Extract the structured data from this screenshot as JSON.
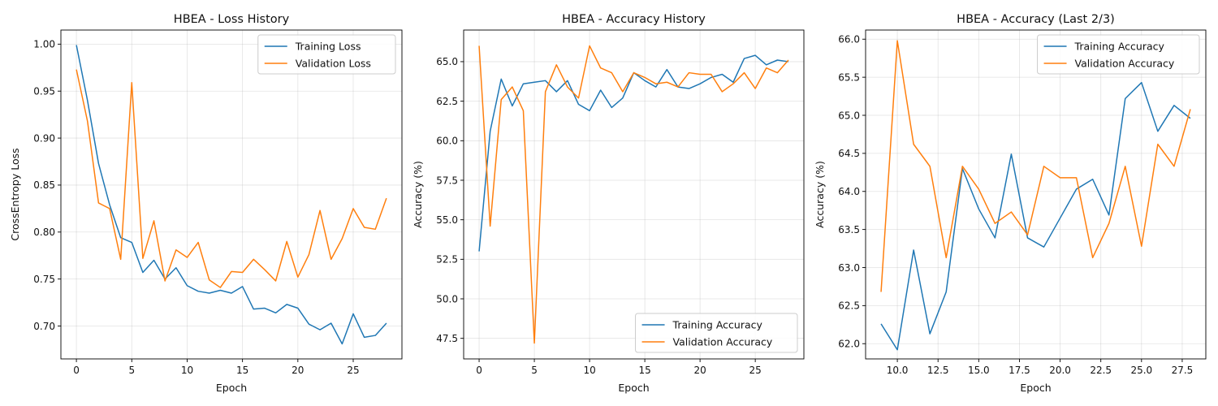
{
  "colors": {
    "training": "#1f77b4",
    "validation": "#ff7f0e"
  },
  "chart_data": [
    {
      "type": "line",
      "title": "HBEA - Loss History",
      "xlabel": "Epoch",
      "ylabel": "CrossEntropy Loss",
      "xlim": [
        -1.4,
        29.4
      ],
      "ylim": [
        0.665,
        1.015
      ],
      "xticks": [
        0,
        5,
        10,
        15,
        20,
        25
      ],
      "xtick_labels": [
        "0",
        "5",
        "10",
        "15",
        "20",
        "25"
      ],
      "yticks": [
        0.7,
        0.75,
        0.8,
        0.85,
        0.9,
        0.95,
        1.0
      ],
      "ytick_labels": [
        "0.70",
        "0.75",
        "0.80",
        "0.85",
        "0.90",
        "0.95",
        "1.00"
      ],
      "grid": true,
      "legend": "top-right",
      "x": [
        0,
        1,
        2,
        3,
        4,
        5,
        6,
        7,
        8,
        9,
        10,
        11,
        12,
        13,
        14,
        15,
        16,
        17,
        18,
        19,
        20,
        21,
        22,
        23,
        24,
        25,
        26,
        27,
        28
      ],
      "series": [
        {
          "name": "Training Loss",
          "color": "#1f77b4",
          "values": [
            0.999,
            0.94,
            0.873,
            0.829,
            0.794,
            0.789,
            0.757,
            0.77,
            0.75,
            0.762,
            0.743,
            0.737,
            0.735,
            0.738,
            0.735,
            0.742,
            0.718,
            0.719,
            0.714,
            0.723,
            0.719,
            0.702,
            0.696,
            0.703,
            0.681,
            0.713,
            0.688,
            0.69,
            0.703
          ]
        },
        {
          "name": "Validation Loss",
          "color": "#ff7f0e",
          "values": [
            0.973,
            0.918,
            0.831,
            0.825,
            0.771,
            0.959,
            0.772,
            0.812,
            0.748,
            0.781,
            0.773,
            0.789,
            0.749,
            0.741,
            0.758,
            0.757,
            0.771,
            0.76,
            0.748,
            0.79,
            0.752,
            0.776,
            0.823,
            0.771,
            0.793,
            0.825,
            0.805,
            0.803,
            0.836
          ]
        }
      ]
    },
    {
      "type": "line",
      "title": "HBEA - Accuracy History",
      "xlabel": "Epoch",
      "ylabel": "Accuracy (%)",
      "xlim": [
        -1.4,
        29.4
      ],
      "ylim": [
        46.2,
        67.0
      ],
      "xticks": [
        0,
        5,
        10,
        15,
        20,
        25
      ],
      "xtick_labels": [
        "0",
        "5",
        "10",
        "15",
        "20",
        "25"
      ],
      "yticks": [
        47.5,
        50.0,
        52.5,
        55.0,
        57.5,
        60.0,
        62.5,
        65.0
      ],
      "ytick_labels": [
        "47.5",
        "50.0",
        "52.5",
        "55.0",
        "57.5",
        "60.0",
        "62.5",
        "65.0"
      ],
      "grid": true,
      "legend": "bottom-right",
      "x": [
        0,
        1,
        2,
        3,
        4,
        5,
        6,
        7,
        8,
        9,
        10,
        11,
        12,
        13,
        14,
        15,
        16,
        17,
        18,
        19,
        20,
        21,
        22,
        23,
        24,
        25,
        26,
        27,
        28
      ],
      "series": [
        {
          "name": "Training Accuracy",
          "color": "#1f77b4",
          "values": [
            53.0,
            60.6,
            63.9,
            62.2,
            63.6,
            63.7,
            63.8,
            63.1,
            63.8,
            62.3,
            61.9,
            63.2,
            62.1,
            62.7,
            64.3,
            63.8,
            63.4,
            64.5,
            63.4,
            63.3,
            63.6,
            64.0,
            64.2,
            63.7,
            65.2,
            65.4,
            64.8,
            65.1,
            65.0
          ]
        },
        {
          "name": "Validation Accuracy",
          "color": "#ff7f0e",
          "values": [
            66.0,
            54.6,
            62.6,
            63.4,
            61.9,
            47.2,
            63.1,
            64.8,
            63.4,
            62.7,
            66.0,
            64.6,
            64.3,
            63.1,
            64.3,
            64.0,
            63.6,
            63.7,
            63.4,
            64.3,
            64.2,
            64.2,
            63.1,
            63.6,
            64.3,
            63.3,
            64.6,
            64.3,
            65.1
          ]
        }
      ]
    },
    {
      "type": "line",
      "title": "HBEA - Accuracy (Last 2/3)",
      "xlabel": "Epoch",
      "ylabel": "Accuracy (%)",
      "xlim": [
        8.05,
        28.95
      ],
      "ylim": [
        61.8,
        66.12
      ],
      "xticks": [
        10.0,
        12.5,
        15.0,
        17.5,
        20.0,
        22.5,
        25.0,
        27.5
      ],
      "xtick_labels": [
        "10.0",
        "12.5",
        "15.0",
        "17.5",
        "20.0",
        "22.5",
        "25.0",
        "27.5"
      ],
      "yticks": [
        62.0,
        62.5,
        63.0,
        63.5,
        64.0,
        64.5,
        65.0,
        65.5,
        66.0
      ],
      "ytick_labels": [
        "62.0",
        "62.5",
        "63.0",
        "63.5",
        "64.0",
        "64.5",
        "65.0",
        "65.5",
        "66.0"
      ],
      "grid": true,
      "legend": "top-right",
      "x": [
        9,
        10,
        11,
        12,
        13,
        14,
        15,
        16,
        17,
        18,
        19,
        20,
        21,
        22,
        23,
        24,
        25,
        26,
        27,
        28
      ],
      "series": [
        {
          "name": "Training Accuracy",
          "color": "#1f77b4",
          "values": [
            62.26,
            61.92,
            63.23,
            62.13,
            62.68,
            64.3,
            63.77,
            63.39,
            64.49,
            63.39,
            63.27,
            63.65,
            64.03,
            64.16,
            63.69,
            65.22,
            65.43,
            64.79,
            65.13,
            64.96
          ]
        },
        {
          "name": "Validation Accuracy",
          "color": "#ff7f0e",
          "values": [
            62.68,
            65.98,
            64.62,
            64.33,
            63.13,
            64.33,
            64.03,
            63.58,
            63.73,
            63.43,
            64.33,
            64.18,
            64.18,
            63.13,
            63.58,
            64.33,
            63.28,
            64.62,
            64.33,
            65.08
          ]
        }
      ]
    }
  ]
}
